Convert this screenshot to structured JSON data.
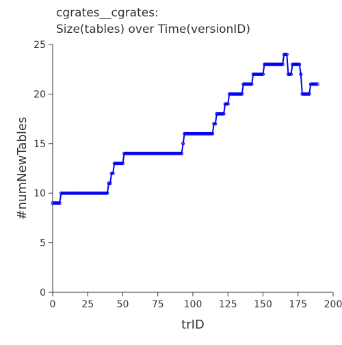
{
  "chart_data": {
    "type": "line",
    "title_lines": [
      "cgrates__cgrates:",
      "Size(tables) over Time(versionID)"
    ],
    "xlabel": "trID",
    "ylabel": "#numNewTables",
    "xlim": [
      0,
      200
    ],
    "xticks": [
      0,
      25,
      50,
      75,
      100,
      125,
      150,
      175,
      200
    ],
    "ylim": [
      0,
      25
    ],
    "yticks": [
      0,
      5,
      10,
      15,
      20,
      25
    ],
    "color": "#0000ee",
    "x": [
      0,
      1,
      2,
      3,
      4,
      5,
      6,
      7,
      8,
      9,
      10,
      11,
      12,
      13,
      14,
      15,
      16,
      17,
      18,
      19,
      20,
      21,
      22,
      23,
      24,
      25,
      26,
      27,
      28,
      29,
      30,
      31,
      32,
      33,
      34,
      35,
      36,
      37,
      38,
      39,
      40,
      41,
      42,
      43,
      44,
      45,
      46,
      47,
      48,
      49,
      50,
      51,
      52,
      53,
      54,
      55,
      56,
      57,
      58,
      59,
      60,
      61,
      62,
      63,
      64,
      65,
      66,
      67,
      68,
      69,
      70,
      71,
      72,
      73,
      74,
      75,
      76,
      77,
      78,
      79,
      80,
      81,
      82,
      83,
      84,
      85,
      86,
      87,
      88,
      89,
      90,
      91,
      92,
      93,
      94,
      95,
      96,
      97,
      98,
      99,
      100,
      101,
      102,
      103,
      104,
      105,
      106,
      107,
      108,
      109,
      110,
      111,
      112,
      113,
      114,
      115,
      116,
      117,
      118,
      119,
      120,
      121,
      122,
      123,
      124,
      125,
      126,
      127,
      128,
      129,
      130,
      131,
      132,
      133,
      134,
      135,
      136,
      137,
      138,
      139,
      140,
      141,
      142,
      143,
      144,
      145,
      146,
      147,
      148,
      149,
      150,
      151,
      152,
      153,
      154,
      155,
      156,
      157,
      158,
      159,
      160,
      161,
      162,
      163,
      164,
      165,
      166,
      167,
      168,
      169,
      170,
      171,
      172,
      173,
      174,
      175,
      176,
      177,
      178,
      179,
      180,
      181,
      182,
      183,
      184,
      185,
      186,
      187,
      188,
      189
    ],
    "values": [
      9,
      9,
      9,
      9,
      9,
      9,
      10,
      10,
      10,
      10,
      10,
      10,
      10,
      10,
      10,
      10,
      10,
      10,
      10,
      10,
      10,
      10,
      10,
      10,
      10,
      10,
      10,
      10,
      10,
      10,
      10,
      10,
      10,
      10,
      10,
      10,
      10,
      10,
      10,
      10,
      11,
      11,
      12,
      12,
      13,
      13,
      13,
      13,
      13,
      13,
      13,
      14,
      14,
      14,
      14,
      14,
      14,
      14,
      14,
      14,
      14,
      14,
      14,
      14,
      14,
      14,
      14,
      14,
      14,
      14,
      14,
      14,
      14,
      14,
      14,
      14,
      14,
      14,
      14,
      14,
      14,
      14,
      14,
      14,
      14,
      14,
      14,
      14,
      14,
      14,
      14,
      14,
      14,
      15,
      16,
      16,
      16,
      16,
      16,
      16,
      16,
      16,
      16,
      16,
      16,
      16,
      16,
      16,
      16,
      16,
      16,
      16,
      16,
      16,
      16,
      17,
      17,
      18,
      18,
      18,
      18,
      18,
      18,
      19,
      19,
      19,
      20,
      20,
      20,
      20,
      20,
      20,
      20,
      20,
      20,
      20,
      21,
      21,
      21,
      21,
      21,
      21,
      21,
      22,
      22,
      22,
      22,
      22,
      22,
      22,
      22,
      23,
      23,
      23,
      23,
      23,
      23,
      23,
      23,
      23,
      23,
      23,
      23,
      23,
      23,
      24,
      24,
      24,
      22,
      22,
      22,
      23,
      23,
      23,
      23,
      23,
      23,
      22,
      20,
      20,
      20,
      20,
      20,
      20,
      21,
      21,
      21,
      21,
      21,
      21
    ]
  }
}
